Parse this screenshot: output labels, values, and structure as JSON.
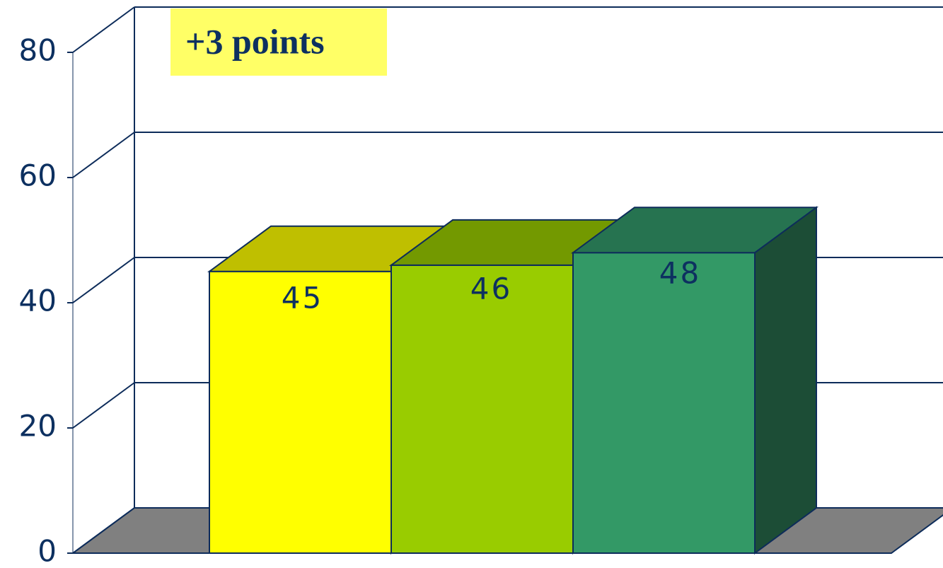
{
  "chart_data": {
    "type": "bar3d",
    "values": [
      45,
      46,
      48
    ],
    "colors": [
      "#ffff00",
      "#99cc00",
      "#339966"
    ],
    "top_colors": [
      "#bfbf00",
      "#739900",
      "#267350"
    ],
    "side_color": "#1c4d36",
    "floor_color": "#808080",
    "ylim": [
      0,
      80
    ],
    "yticks": [
      0,
      20,
      40,
      60,
      80
    ],
    "grid": true,
    "annotation": "+3 points"
  }
}
